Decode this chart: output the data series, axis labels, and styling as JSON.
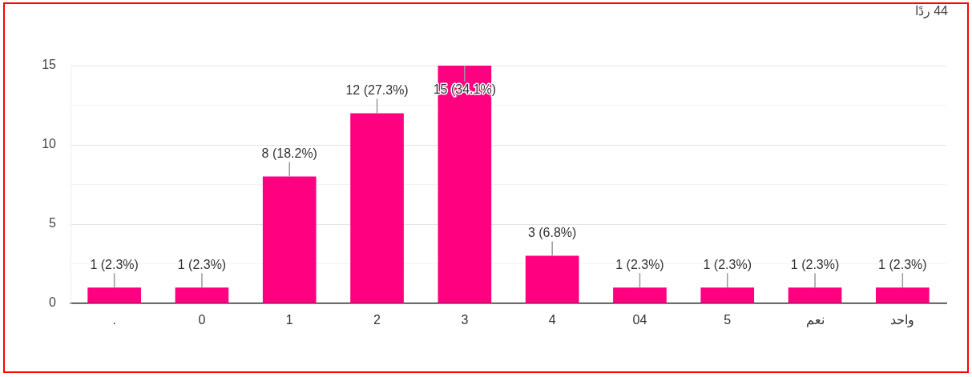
{
  "chart_data": {
    "type": "bar",
    "categories": [
      ".",
      "0",
      "1",
      "2",
      "3",
      "4",
      "04",
      "5",
      "نعم",
      "واحد"
    ],
    "values": [
      1,
      1,
      8,
      12,
      15,
      3,
      1,
      1,
      1,
      1
    ],
    "value_labels": [
      "1 (2.3%)",
      "1 (2.3%)",
      "8 (18.2%)",
      "12 (27.3%)",
      "15 (34.1%)",
      "3 (6.8%)",
      "1 (2.3%)",
      "1 (2.3%)",
      "1 (2.3%)",
      "1 (2.3%)"
    ],
    "color": "#ff0080",
    "ylim": [
      0,
      15
    ],
    "yticks": [
      0,
      {
        "value": 2.5,
        "label": null
      },
      5,
      {
        "value": 7.5,
        "label": null
      },
      10,
      {
        "value": 12.5,
        "label": null
      },
      15
    ],
    "grid": "y",
    "annotations": [
      "44 ردًا"
    ]
  }
}
